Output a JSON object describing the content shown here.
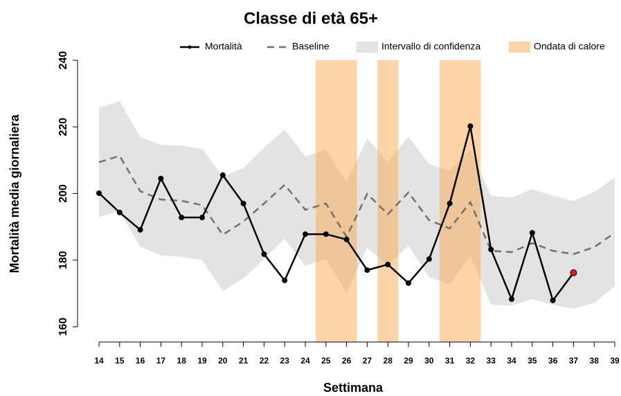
{
  "chart_data": {
    "type": "line",
    "title": "Classe di età 65+",
    "xlabel": "Settimana",
    "ylabel": "Mortalità media giornaliera",
    "x": [
      14,
      15,
      16,
      17,
      18,
      19,
      20,
      21,
      22,
      23,
      24,
      25,
      26,
      27,
      28,
      29,
      30,
      31,
      32,
      33,
      34,
      35,
      36,
      37,
      38,
      39
    ],
    "xlim": [
      14,
      39
    ],
    "xticks": [
      14,
      15,
      16,
      17,
      18,
      19,
      20,
      21,
      22,
      23,
      24,
      25,
      26,
      27,
      28,
      29,
      30,
      31,
      32,
      33,
      34,
      35,
      36,
      37,
      38,
      39
    ],
    "ylim": [
      160,
      240
    ],
    "yticks": [
      160,
      180,
      200,
      220,
      240
    ],
    "series": [
      {
        "name": "Mortalità",
        "color": "#000000",
        "style": "line-points",
        "last_point_color": "#e31a1c",
        "values": [
          200.1,
          194.3,
          189.1,
          204.5,
          192.8,
          192.8,
          205.5,
          197,
          181.8,
          173.9,
          187.8,
          187.8,
          186.2,
          177,
          178.7,
          173.1,
          180.3,
          197,
          220.2,
          183.2,
          168.3,
          188.2,
          167.9,
          176.2,
          null,
          null
        ]
      },
      {
        "name": "Baseline",
        "color": "#707070",
        "style": "dashed",
        "values": [
          209.4,
          211.3,
          200.7,
          198.2,
          197.8,
          196.5,
          187.6,
          191.6,
          197,
          202.6,
          195.1,
          197,
          187,
          199.9,
          193.8,
          200.3,
          192,
          189.5,
          197.4,
          182.8,
          182.4,
          185.1,
          182.8,
          181.8,
          183.9,
          188.2
        ]
      },
      {
        "name": "Intervallo di confidenza",
        "color": "#e3e3e3",
        "style": "band",
        "upper": [
          225.7,
          227.7,
          216.9,
          214.6,
          214.4,
          213.4,
          205.1,
          207.6,
          213.8,
          219.2,
          211.1,
          213.2,
          203.4,
          216.5,
          209.4,
          217.1,
          208.8,
          206.9,
          213.2,
          199.3,
          198.8,
          201.3,
          199.3,
          197.8,
          200.5,
          204.7
        ],
        "lower": [
          193,
          194.7,
          184.1,
          181.4,
          181,
          180,
          170.8,
          174.5,
          180.3,
          186.4,
          178.3,
          180.3,
          170.1,
          183.7,
          178.5,
          184.3,
          174.9,
          172.8,
          181.2,
          166.6,
          166.4,
          168.3,
          166.6,
          165.4,
          167.2,
          172.2
        ]
      },
      {
        "name": "Ondata di calore",
        "color": "#f9a94f",
        "style": "spans",
        "spans": [
          [
            24.5,
            26.5
          ],
          [
            27.5,
            28.5
          ],
          [
            30.5,
            32.5
          ]
        ]
      }
    ]
  }
}
